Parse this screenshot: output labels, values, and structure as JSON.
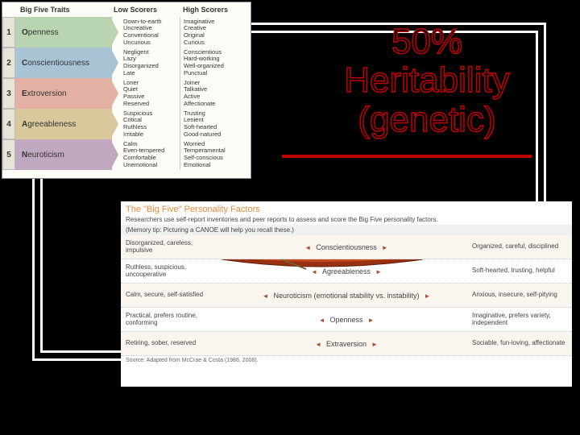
{
  "trait_table": {
    "headers": {
      "trait": "Big Five Traits",
      "low": "Low Scorers",
      "high": "High Scorers"
    },
    "rows": [
      {
        "n": "1",
        "letter": "O",
        "rest": "penness",
        "color": "arrow-green",
        "low": "Down-to-earth\nUncreative\nConventional\nUncurious",
        "high": "Imaginative\nCreative\nOriginal\nCurious"
      },
      {
        "n": "2",
        "letter": "C",
        "rest": "onscientiousness",
        "color": "arrow-blue",
        "low": "Negligent\nLazy\nDisorganized\nLate",
        "high": "Conscientious\nHard-working\nWell-organized\nPunctual"
      },
      {
        "n": "3",
        "letter": "E",
        "rest": "xtroversion",
        "color": "arrow-pink",
        "low": "Loner\nQuiet\nPassive\nReserved",
        "high": "Joiner\nTalkative\nActive\nAffectionate"
      },
      {
        "n": "4",
        "letter": "A",
        "rest": "greeableness",
        "color": "arrow-tan",
        "low": "Suspicious\nCritical\nRuthless\nIrritable",
        "high": "Trusting\nLenient\nSoft-hearted\nGood-natured"
      },
      {
        "n": "5",
        "letter": "N",
        "rest": "euroticism",
        "color": "arrow-purple",
        "low": "Calm\nEven-tempered\nComfortable\nUnemotional",
        "high": "Worried\nTemperamental\nSelf-conscious\nEmotional"
      }
    ]
  },
  "heritability": {
    "l1": "50%",
    "l2": "Heritability",
    "l3": "(genetic)"
  },
  "canoe": {
    "title": "The \"Big Five\" Personality Factors",
    "sub": "Researchers use self-report inventories and peer reports to assess and score the Big Five personality factors.",
    "tip": "(Memory tip: Picturing a CANOE will help you recall these.)",
    "rows": [
      {
        "left": "Disorganized, careless, impulsive",
        "mid": "Conscientiousness",
        "right": "Organized, careful, disciplined"
      },
      {
        "left": "Ruthless, suspicious, uncooperative",
        "mid": "Agreeableness",
        "right": "Soft-hearted, trusting, helpful"
      },
      {
        "left": "Calm, secure, self-satisfied",
        "mid": "Neuroticism (emotional stability vs. instability)",
        "right": "Anxious, insecure, self-pitying"
      },
      {
        "left": "Practical, prefers routine, conforming",
        "mid": "Openness",
        "right": "Imaginative, prefers variety, independent"
      },
      {
        "left": "Retiring, sober, reserved",
        "mid": "Extraversion",
        "right": "Sociable, fun-loving, affectionate"
      }
    ],
    "source": "Source: Adapted from McCrae & Costa (1986, 2008)."
  },
  "colors": {
    "accent_red": "#c00000",
    "canoe_orange": "#e88a3a",
    "bg": "#000000"
  }
}
